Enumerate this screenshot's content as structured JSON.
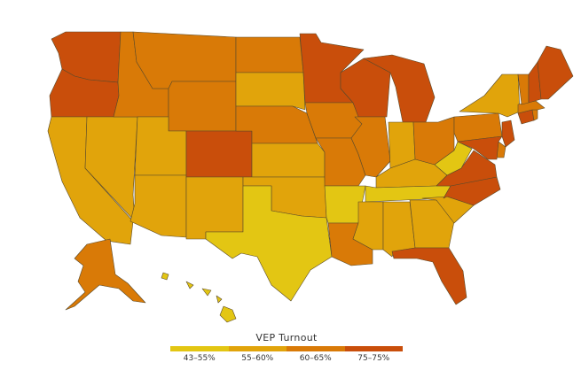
{
  "legend": {
    "title": "VEP Turnout",
    "bins": [
      {
        "label": "43–55%",
        "color": "#e3c613"
      },
      {
        "label": "55–60%",
        "color": "#e1a40b"
      },
      {
        "label": "60–65%",
        "color": "#d97a07"
      },
      {
        "label": "75–75%",
        "color": "#c94e0b"
      }
    ]
  },
  "states": [
    {
      "id": "WA",
      "bin": 3
    },
    {
      "id": "OR",
      "bin": 3
    },
    {
      "id": "CA",
      "bin": 1
    },
    {
      "id": "NV",
      "bin": 1
    },
    {
      "id": "ID",
      "bin": 2
    },
    {
      "id": "MT",
      "bin": 2
    },
    {
      "id": "WY",
      "bin": 2
    },
    {
      "id": "UT",
      "bin": 1
    },
    {
      "id": "AZ",
      "bin": 1
    },
    {
      "id": "CO",
      "bin": 3
    },
    {
      "id": "NM",
      "bin": 1
    },
    {
      "id": "ND",
      "bin": 2
    },
    {
      "id": "SD",
      "bin": 1
    },
    {
      "id": "NE",
      "bin": 2
    },
    {
      "id": "KS",
      "bin": 1
    },
    {
      "id": "OK",
      "bin": 1
    },
    {
      "id": "TX",
      "bin": 0
    },
    {
      "id": "MN",
      "bin": 3
    },
    {
      "id": "IA",
      "bin": 2
    },
    {
      "id": "MO",
      "bin": 2
    },
    {
      "id": "AR",
      "bin": 0
    },
    {
      "id": "LA",
      "bin": 2
    },
    {
      "id": "WI",
      "bin": 3
    },
    {
      "id": "IL",
      "bin": 2
    },
    {
      "id": "MI",
      "bin": 3
    },
    {
      "id": "IN",
      "bin": 1
    },
    {
      "id": "OH",
      "bin": 2
    },
    {
      "id": "KY",
      "bin": 1
    },
    {
      "id": "TN",
      "bin": 0
    },
    {
      "id": "MS",
      "bin": 1
    },
    {
      "id": "AL",
      "bin": 1
    },
    {
      "id": "GA",
      "bin": 1
    },
    {
      "id": "FL",
      "bin": 3
    },
    {
      "id": "SC",
      "bin": 1
    },
    {
      "id": "NC",
      "bin": 3
    },
    {
      "id": "VA",
      "bin": 3
    },
    {
      "id": "WV",
      "bin": 0
    },
    {
      "id": "PA",
      "bin": 2
    },
    {
      "id": "NY",
      "bin": 1
    },
    {
      "id": "NJ",
      "bin": 3
    },
    {
      "id": "DE",
      "bin": 2
    },
    {
      "id": "MD",
      "bin": 3
    },
    {
      "id": "CT",
      "bin": 3
    },
    {
      "id": "RI",
      "bin": 2
    },
    {
      "id": "MA",
      "bin": 2
    },
    {
      "id": "VT",
      "bin": 2
    },
    {
      "id": "NH",
      "bin": 3
    },
    {
      "id": "ME",
      "bin": 3
    },
    {
      "id": "AK",
      "bin": 2
    },
    {
      "id": "HI",
      "bin": 0
    }
  ]
}
